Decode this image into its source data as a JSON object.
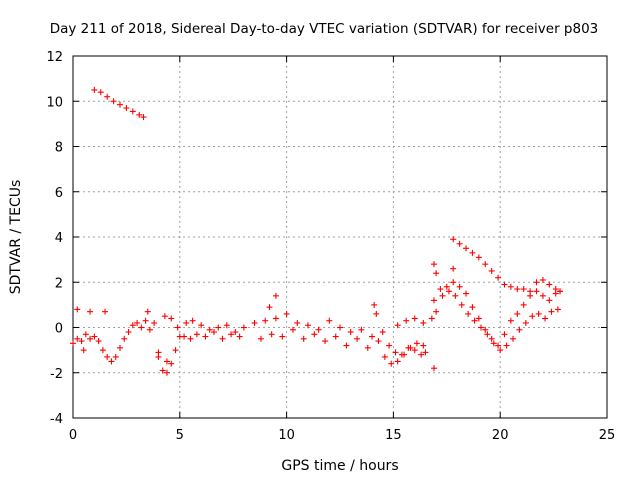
{
  "chart_data": {
    "type": "scatter",
    "title": "Day 211 of 2018, Sidereal Day-to-day VTEC variation (SDTVAR) for receiver p803",
    "xlabel": "GPS time / hours",
    "ylabel": "SDTVAR / TECUs",
    "xlim": [
      0,
      25
    ],
    "ylim": [
      -4,
      12
    ],
    "xticks": [
      "0",
      "5",
      "10",
      "15",
      "20",
      "25"
    ],
    "yticks": [
      "-4",
      "-2",
      "0",
      "2",
      "4",
      "6",
      "8",
      "10",
      "12"
    ],
    "grid": true,
    "marker": "+",
    "color": "#ff0000",
    "series": [
      {
        "name": "SDTVAR",
        "x": [
          0.0,
          0.2,
          0.4,
          0.6,
          0.8,
          1.0,
          1.2,
          1.4,
          1.6,
          1.8,
          2.0,
          2.2,
          2.4,
          2.6,
          2.8,
          3.0,
          3.2,
          3.4,
          3.6,
          3.8,
          1.0,
          1.3,
          1.6,
          1.9,
          2.2,
          2.5,
          2.8,
          3.1,
          3.3,
          4.0,
          4.2,
          4.4,
          4.6,
          4.8,
          5.0,
          5.3,
          5.6,
          6.0,
          6.4,
          6.8,
          7.2,
          7.6,
          8.0,
          4.3,
          4.6,
          4.9,
          5.2,
          5.5,
          5.8,
          6.2,
          6.6,
          7.0,
          7.4,
          7.8,
          8.5,
          9.0,
          9.5,
          10.0,
          10.5,
          11.0,
          11.5,
          12.0,
          12.5,
          13.0,
          13.5,
          14.0,
          8.8,
          9.3,
          9.8,
          10.3,
          10.8,
          11.3,
          11.8,
          12.3,
          12.8,
          13.3,
          13.8,
          14.2,
          14.5,
          14.8,
          15.1,
          15.4,
          15.7,
          16.0,
          16.3,
          16.5,
          14.3,
          14.6,
          14.9,
          15.2,
          15.5,
          15.8,
          16.1,
          16.4,
          15.2,
          15.6,
          16.0,
          16.4,
          16.9,
          17.2,
          17.5,
          17.8,
          18.1,
          18.4,
          18.7,
          19.0,
          19.3,
          19.6,
          19.9,
          20.2,
          20.5,
          20.8,
          21.1,
          21.4,
          21.7,
          22.0,
          22.3,
          22.6,
          22.8,
          17.0,
          17.3,
          17.6,
          17.9,
          18.2,
          18.5,
          18.8,
          19.1,
          19.4,
          19.7,
          20.0,
          20.3,
          20.6,
          20.9,
          21.2,
          21.5,
          21.8,
          22.1,
          22.4,
          22.7,
          17.8,
          18.1,
          18.4,
          18.7,
          19.0,
          19.3,
          19.6,
          19.9,
          20.2,
          20.5,
          20.8,
          21.1,
          21.4,
          21.7,
          22.0,
          22.3,
          22.6,
          22.8,
          0.2,
          0.8,
          1.5,
          3.5,
          4.0,
          4.4,
          9.2,
          9.5,
          14.1,
          16.8,
          16.9,
          17.0,
          16.9,
          17.8,
          0.5
        ],
        "y": [
          -0.7,
          -0.5,
          -0.6,
          -0.3,
          -0.5,
          -0.4,
          -0.6,
          -1.0,
          -1.3,
          -1.5,
          -1.3,
          -0.9,
          -0.5,
          -0.2,
          0.1,
          0.2,
          0.0,
          0.3,
          -0.1,
          0.2,
          10.5,
          10.4,
          10.2,
          10.0,
          9.85,
          9.7,
          9.55,
          9.4,
          9.3,
          -1.1,
          -1.9,
          -2.0,
          -1.6,
          -1.0,
          -0.4,
          0.2,
          0.3,
          0.1,
          -0.1,
          0.0,
          0.1,
          -0.2,
          0.0,
          0.5,
          0.4,
          0.0,
          -0.4,
          -0.5,
          -0.3,
          -0.4,
          -0.2,
          -0.5,
          -0.3,
          -0.4,
          0.2,
          0.3,
          0.4,
          0.6,
          0.2,
          0.1,
          -0.1,
          0.3,
          0.0,
          -0.2,
          -0.1,
          -0.4,
          -0.5,
          -0.3,
          -0.4,
          -0.1,
          -0.5,
          -0.3,
          -0.6,
          -0.4,
          -0.8,
          -0.5,
          -0.9,
          0.6,
          -0.2,
          -0.8,
          -1.1,
          -1.2,
          -0.9,
          -1.0,
          -1.2,
          -1.1,
          -0.6,
          -1.3,
          -1.6,
          -1.5,
          -1.2,
          -0.9,
          -0.7,
          -0.8,
          0.1,
          0.3,
          0.4,
          0.2,
          1.2,
          1.7,
          1.8,
          2.0,
          1.8,
          1.5,
          0.9,
          0.4,
          -0.1,
          -0.5,
          -0.8,
          -0.3,
          0.3,
          0.6,
          1.0,
          1.4,
          1.6,
          1.4,
          1.2,
          1.5,
          1.6,
          0.7,
          1.4,
          1.6,
          1.4,
          1.0,
          0.6,
          0.3,
          0.0,
          -0.3,
          -0.7,
          -1.0,
          -0.8,
          -0.5,
          -0.1,
          0.2,
          0.5,
          0.6,
          0.4,
          0.7,
          0.8,
          3.9,
          3.7,
          3.5,
          3.3,
          3.1,
          2.8,
          2.5,
          2.2,
          1.9,
          1.8,
          1.7,
          1.7,
          1.6,
          2.0,
          2.1,
          1.9,
          1.7,
          1.6,
          0.8,
          0.7,
          0.7,
          0.7,
          -1.3,
          -1.5,
          0.9,
          1.4,
          1.0,
          0.4,
          2.8,
          2.4,
          -1.8,
          2.6,
          -1.0
        ]
      }
    ]
  }
}
